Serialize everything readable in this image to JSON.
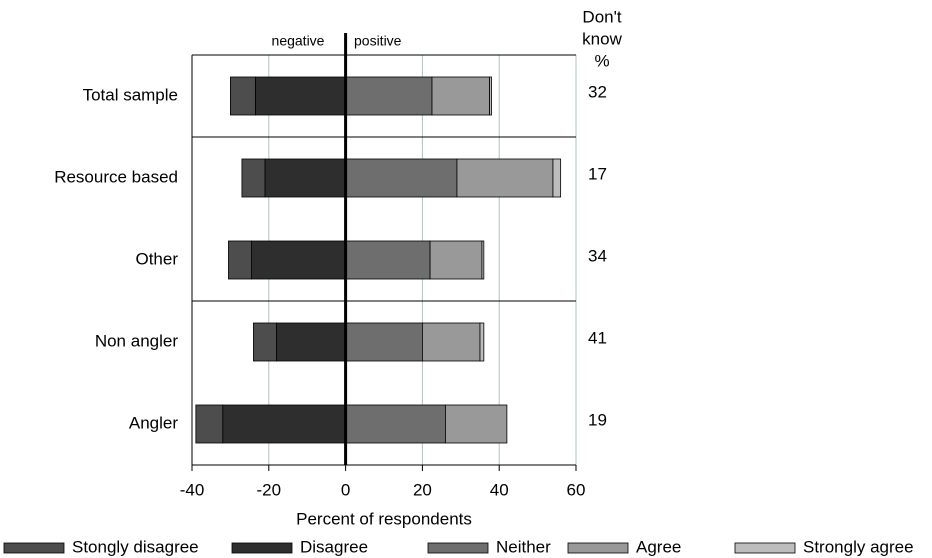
{
  "chart_data": {
    "type": "diverging_bar",
    "xlabel": "Percent of respondents",
    "negative_label": "negative",
    "positive_label": "positive",
    "categories": [
      "Total sample",
      "Resource based",
      "Other",
      "Non angler",
      "Angler"
    ],
    "series": [
      {
        "name": "Stongly disagree",
        "color": "#4d4d4d",
        "values": [
          -6.5,
          -6,
          -6,
          -6,
          -7
        ]
      },
      {
        "name": "Disagree",
        "color": "#2e2e2e",
        "values": [
          -23.5,
          -21,
          -24.5,
          -18,
          -32
        ]
      },
      {
        "name": "Neither",
        "color": "#6e6e6e",
        "values": [
          22.5,
          29,
          22,
          20,
          26
        ]
      },
      {
        "name": "Agree",
        "color": "#999999",
        "values": [
          15,
          25,
          13.5,
          15,
          16
        ]
      },
      {
        "name": "Strongly agree",
        "color": "#bdbdbd",
        "values": [
          0.5,
          2,
          0.5,
          1,
          0
        ]
      }
    ],
    "dont_know_header": [
      "Don't",
      "know",
      "%"
    ],
    "dont_know": [
      32,
      17,
      34,
      41,
      19
    ],
    "group_separators_after": [
      0,
      2
    ],
    "xlim": [
      -40,
      60
    ],
    "xticks": [
      -40,
      -20,
      0,
      20,
      40,
      60
    ],
    "grid": true
  }
}
